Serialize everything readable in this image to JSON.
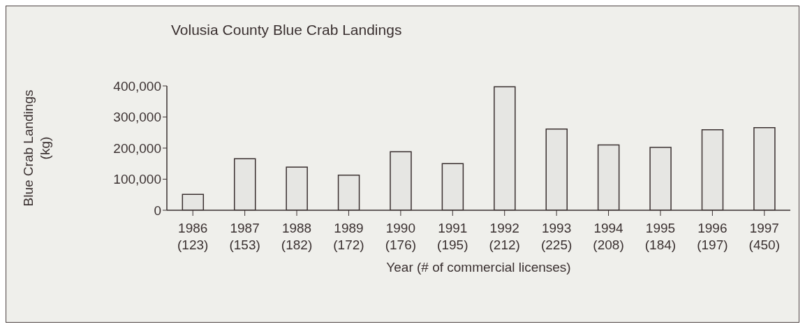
{
  "chart_data": {
    "type": "bar",
    "title": "Volusia County Blue Crab Landings",
    "xlabel": "Year (# of commercial licenses)",
    "ylabel": "Blue Crab Landings (kg)",
    "categories": [
      "1986 (123)",
      "1987 (153)",
      "1988 (182)",
      "1989 (172)",
      "1990 (176)",
      "1991 (195)",
      "1992 (212)",
      "1993 (225)",
      "1994 (208)",
      "1995 (184)",
      "1996 (197)",
      "1997 (450)"
    ],
    "values": [
      51000,
      166000,
      139000,
      113000,
      188000,
      150000,
      397000,
      261000,
      210000,
      202000,
      259000,
      266000
    ],
    "color": "#e6e6e3",
    "ylim": [
      0,
      400000
    ],
    "yticks": [
      0,
      {
        "value": 100000,
        "label": "100,000"
      },
      {
        "value": 200000,
        "label": "200,000"
      },
      {
        "value": 300000,
        "label": "300,000"
      },
      {
        "value": 400000,
        "label": "400,000"
      }
    ],
    "grid": false,
    "legend": false
  }
}
